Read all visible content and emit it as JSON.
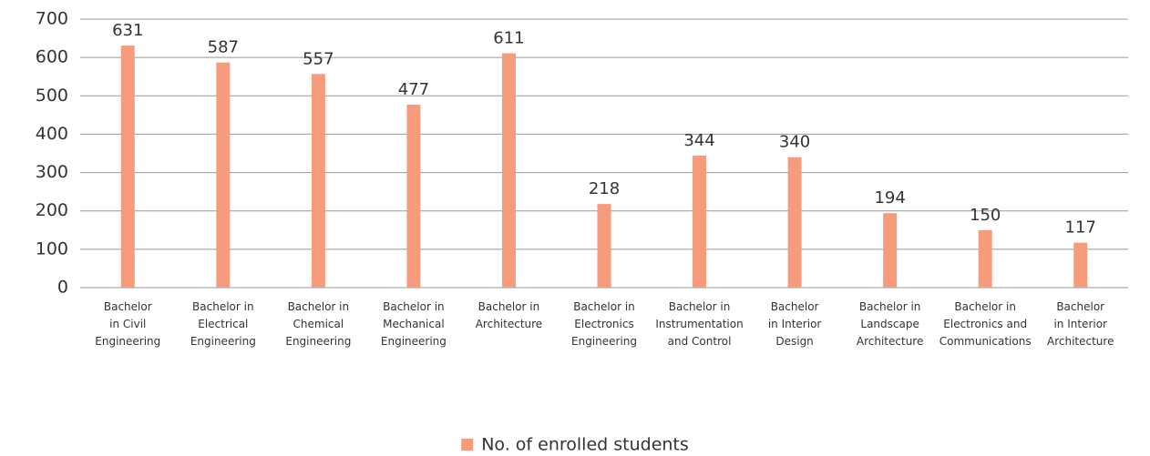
{
  "chart_data": {
    "type": "bar",
    "categories": [
      "Bachelor\nin Civil\nEngineering",
      "Bachelor in\nElectrical\nEngineering",
      "Bachelor in\nChemical\nEngineering",
      "Bachelor in\nMechanical\nEngineering",
      "Bachelor in\nArchitecture",
      "Bachelor in\nElectronics\nEngineering",
      "Bachelor in\nInstrumentation\nand Control",
      "Bachelor\nin Interior\nDesign",
      "Bachelor in\nLandscape\nArchitecture",
      "Bachelor in\nElectronics and\nCommunications",
      "Bachelor\nin Interior\nArchitecture"
    ],
    "series": [
      {
        "name": "No. of enrolled students",
        "color": "#f79b7d",
        "values": [
          631,
          587,
          557,
          477,
          611,
          218,
          344,
          340,
          194,
          150,
          117
        ]
      }
    ],
    "ylim": [
      0,
      700
    ],
    "yticks": [
      0,
      100,
      200,
      300,
      400,
      500,
      600,
      700
    ],
    "grid": true,
    "legend": "bottom"
  }
}
